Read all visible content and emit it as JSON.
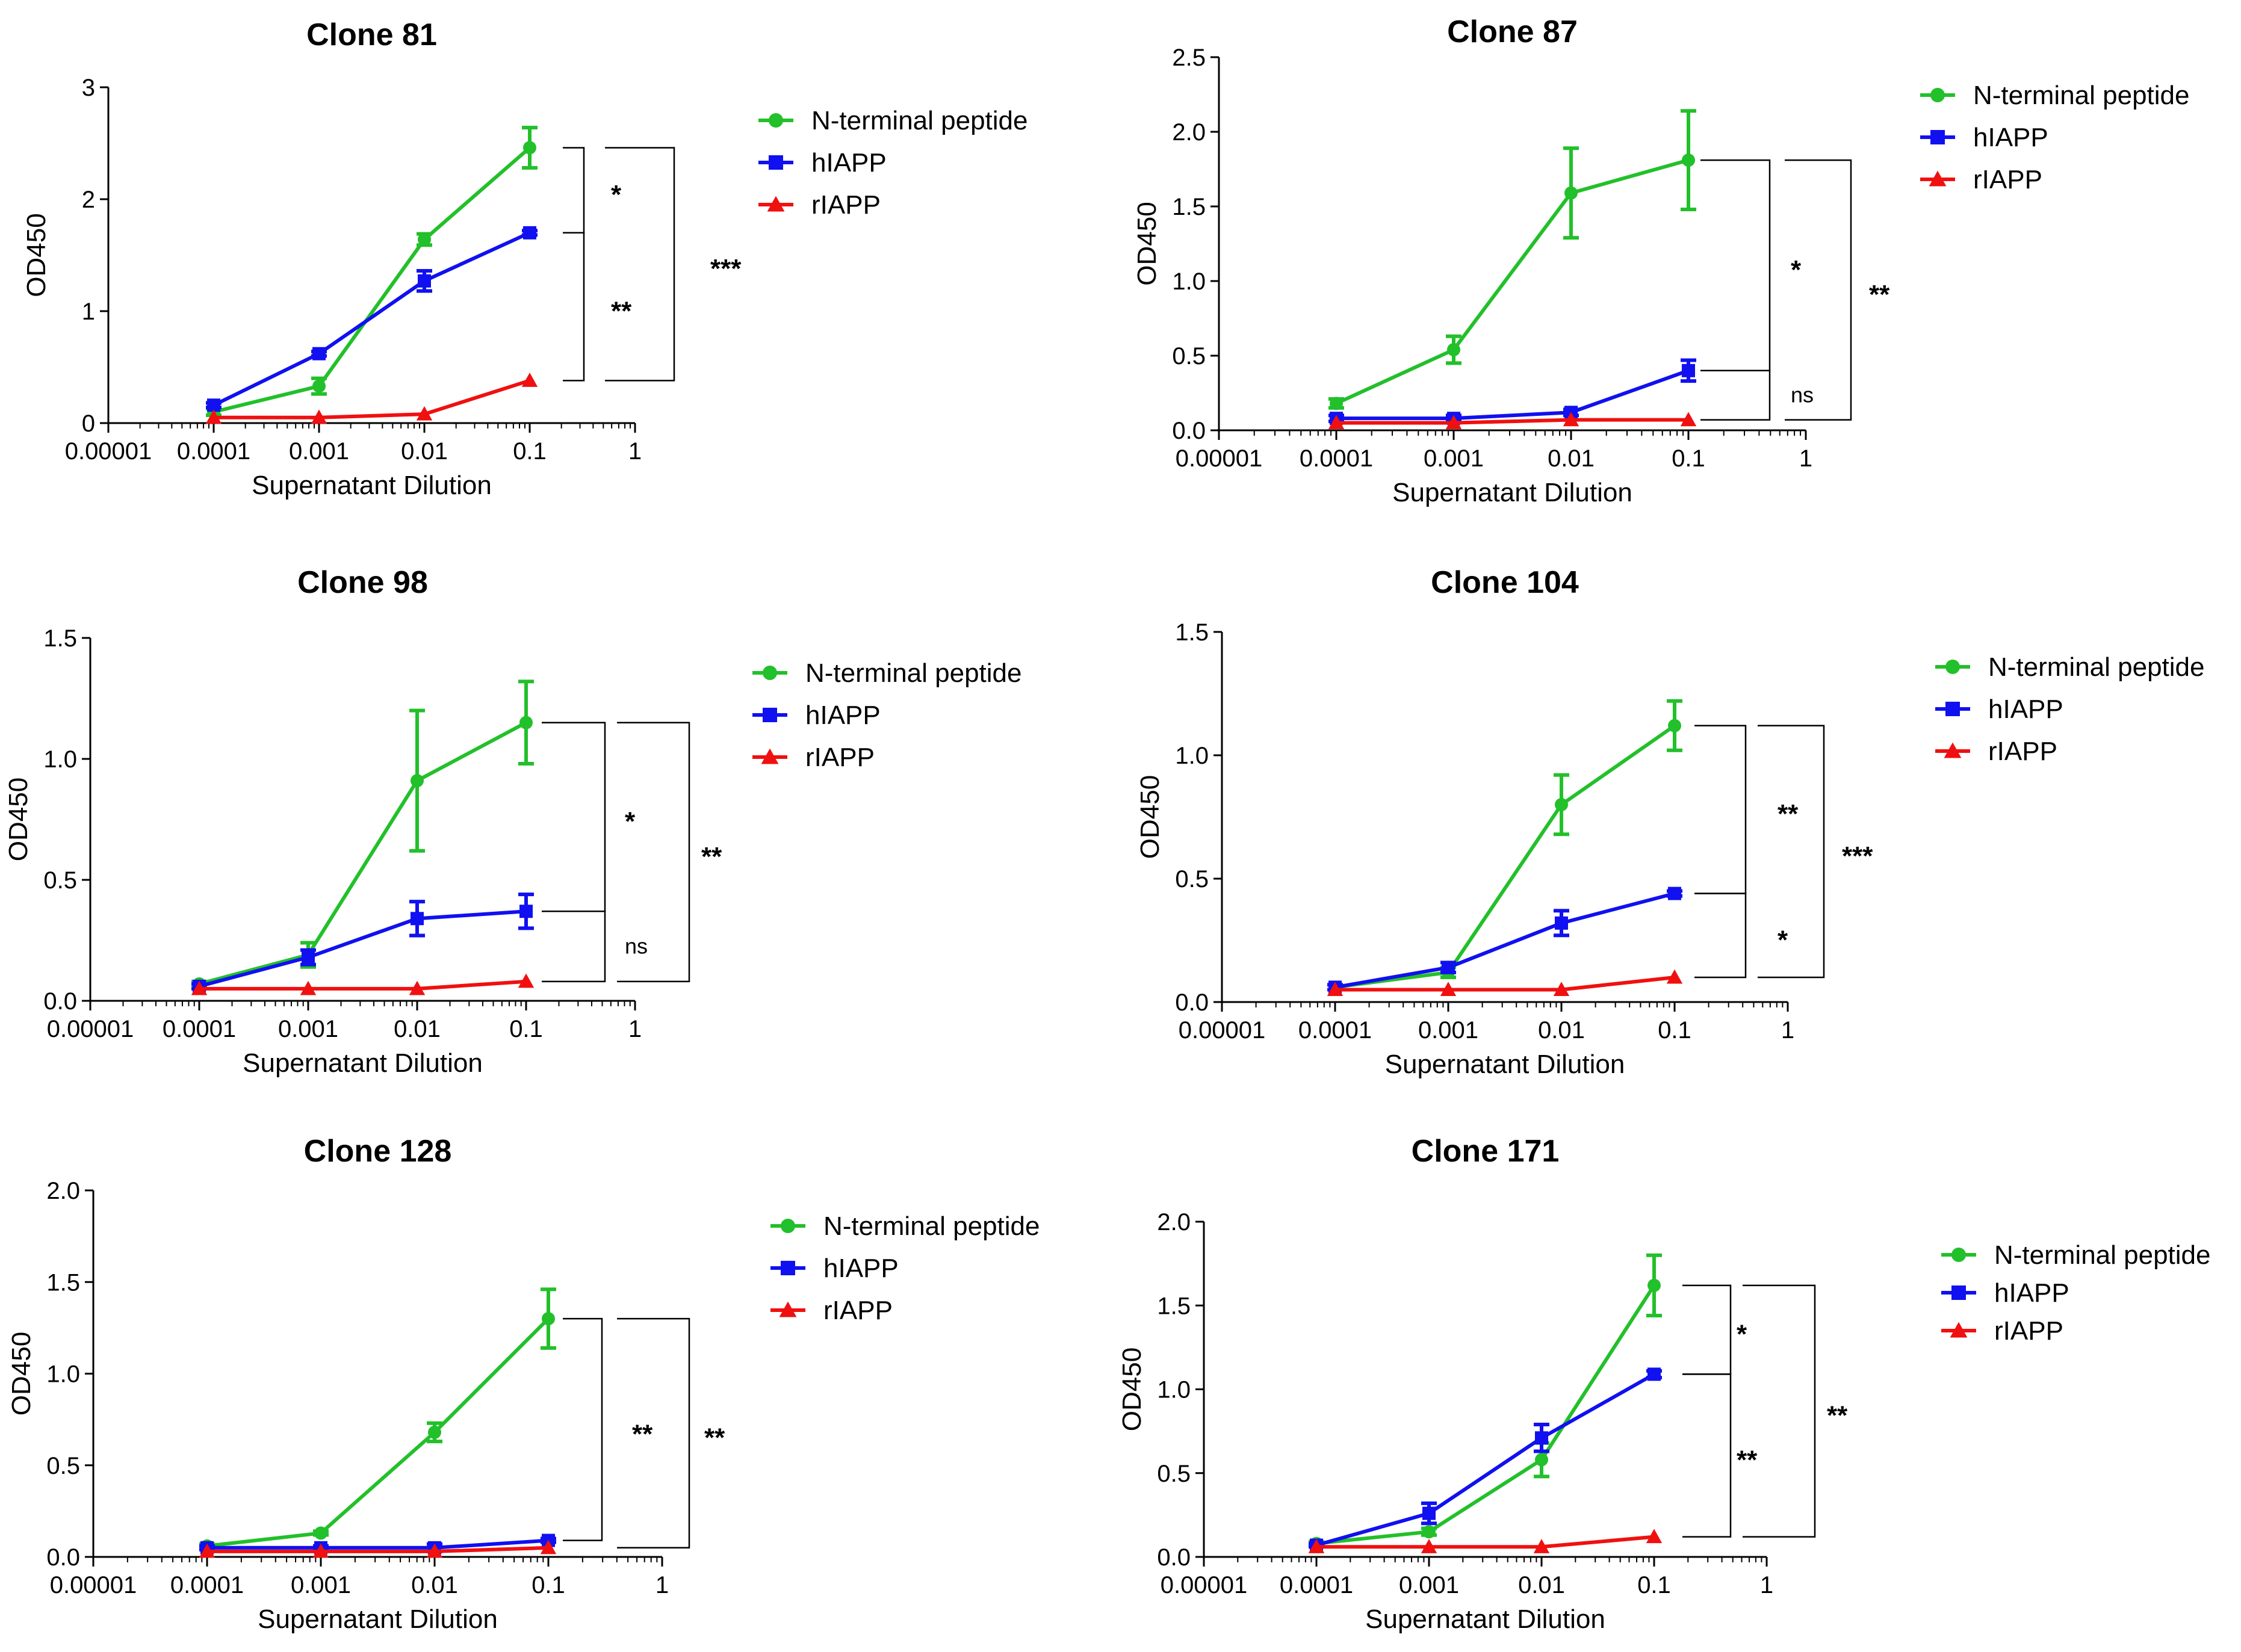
{
  "chart_data": [
    {
      "type": "line",
      "title": "Clone 81",
      "xlabel": "Supernatant Dilution",
      "ylabel": "OD450",
      "xscale": "log",
      "xlim": [
        1e-05,
        1
      ],
      "x_tick_labels": [
        "0.00001",
        "0.0001",
        "0.001",
        "0.01",
        "0.1",
        "1"
      ],
      "ylim": [
        0,
        3
      ],
      "y_tick_labels": [
        "0",
        "1",
        "2",
        "3"
      ],
      "x": [
        0.0001,
        0.001,
        0.01,
        0.1
      ],
      "series": [
        {
          "name": "N-terminal peptide",
          "color": "#22c02a",
          "marker": "circle",
          "values": [
            0.1,
            0.33,
            1.64,
            2.46
          ],
          "errors": [
            0.03,
            0.07,
            0.05,
            0.18
          ]
        },
        {
          "name": "hIAPP",
          "color": "#1010f0",
          "marker": "square",
          "values": [
            0.16,
            0.62,
            1.27,
            1.7
          ],
          "errors": [
            0.02,
            0.02,
            0.09,
            0.02
          ]
        },
        {
          "name": "rIAPP",
          "color": "#f01010",
          "marker": "triangle",
          "values": [
            0.05,
            0.05,
            0.08,
            0.38
          ],
          "errors": [
            0,
            0,
            0,
            0
          ]
        }
      ],
      "legend_position": "right",
      "annotations": [
        {
          "from": "N-terminal peptide",
          "to": "hIAPP",
          "label": "*"
        },
        {
          "from": "hIAPP",
          "to": "rIAPP",
          "label": "**"
        },
        {
          "from": "N-terminal peptide",
          "to": "rIAPP",
          "label": "***"
        }
      ]
    },
    {
      "type": "line",
      "title": "Clone 87",
      "xlabel": "Supernatant Dilution",
      "ylabel": "OD450",
      "xscale": "log",
      "xlim": [
        1e-05,
        1
      ],
      "x_tick_labels": [
        "0.00001",
        "0.0001",
        "0.001",
        "0.01",
        "0.1",
        "1"
      ],
      "ylim": [
        0,
        2.5
      ],
      "y_tick_labels": [
        "0.0",
        "0.5",
        "1.0",
        "1.5",
        "2.0",
        "2.5"
      ],
      "x": [
        0.0001,
        0.001,
        0.01,
        0.1
      ],
      "series": [
        {
          "name": "N-terminal peptide",
          "color": "#22c02a",
          "marker": "circle",
          "values": [
            0.18,
            0.54,
            1.59,
            1.81
          ],
          "errors": [
            0.03,
            0.09,
            0.3,
            0.33
          ]
        },
        {
          "name": "hIAPP",
          "color": "#1010f0",
          "marker": "square",
          "values": [
            0.08,
            0.08,
            0.12,
            0.4
          ],
          "errors": [
            0.02,
            0.02,
            0.02,
            0.07
          ]
        },
        {
          "name": "rIAPP",
          "color": "#f01010",
          "marker": "triangle",
          "values": [
            0.05,
            0.05,
            0.07,
            0.07
          ],
          "errors": [
            0,
            0,
            0,
            0
          ]
        }
      ],
      "legend_position": "right",
      "annotations": [
        {
          "from": "N-terminal peptide",
          "to": "hIAPP",
          "label": "*"
        },
        {
          "from": "hIAPP",
          "to": "rIAPP",
          "label": "ns"
        },
        {
          "from": "N-terminal peptide",
          "to": "rIAPP",
          "label": "**"
        }
      ]
    },
    {
      "type": "line",
      "title": "Clone 98",
      "xlabel": "Supernatant Dilution",
      "ylabel": "OD450",
      "xscale": "log",
      "xlim": [
        1e-05,
        1
      ],
      "x_tick_labels": [
        "0.00001",
        "0.0001",
        "0.001",
        "0.01",
        "0.1",
        "1"
      ],
      "ylim": [
        0,
        1.5
      ],
      "y_tick_labels": [
        "0.0",
        "0.5",
        "1.0",
        "1.5"
      ],
      "x": [
        0.0001,
        0.001,
        0.01,
        0.1
      ],
      "series": [
        {
          "name": "N-terminal peptide",
          "color": "#22c02a",
          "marker": "circle",
          "values": [
            0.07,
            0.19,
            0.91,
            1.15
          ],
          "errors": [
            0.01,
            0.05,
            0.29,
            0.17
          ]
        },
        {
          "name": "hIAPP",
          "color": "#1010f0",
          "marker": "square",
          "values": [
            0.06,
            0.18,
            0.34,
            0.37
          ],
          "errors": [
            0.01,
            0.03,
            0.07,
            0.07
          ]
        },
        {
          "name": "rIAPP",
          "color": "#f01010",
          "marker": "triangle",
          "values": [
            0.05,
            0.05,
            0.05,
            0.08
          ],
          "errors": [
            0,
            0,
            0,
            0
          ]
        }
      ],
      "legend_position": "right",
      "annotations": [
        {
          "from": "N-terminal peptide",
          "to": "hIAPP",
          "label": "*"
        },
        {
          "from": "hIAPP",
          "to": "rIAPP",
          "label": "ns"
        },
        {
          "from": "N-terminal peptide",
          "to": "rIAPP",
          "label": "**"
        }
      ]
    },
    {
      "type": "line",
      "title": "Clone 104",
      "xlabel": "Supernatant Dilution",
      "ylabel": "OD450",
      "xscale": "log",
      "xlim": [
        1e-05,
        1
      ],
      "x_tick_labels": [
        "0.00001",
        "0.0001",
        "0.001",
        "0.01",
        "0.1",
        "1"
      ],
      "ylim": [
        0,
        1.5
      ],
      "y_tick_labels": [
        "0.0",
        "0.5",
        "1.0",
        "1.5"
      ],
      "x": [
        0.0001,
        0.001,
        0.01,
        0.1
      ],
      "series": [
        {
          "name": "N-terminal peptide",
          "color": "#22c02a",
          "marker": "circle",
          "values": [
            0.06,
            0.12,
            0.8,
            1.12
          ],
          "errors": [
            0.01,
            0.02,
            0.12,
            0.1
          ]
        },
        {
          "name": "hIAPP",
          "color": "#1010f0",
          "marker": "square",
          "values": [
            0.06,
            0.14,
            0.32,
            0.44
          ],
          "errors": [
            0.01,
            0.02,
            0.05,
            0.01
          ]
        },
        {
          "name": "rIAPP",
          "color": "#f01010",
          "marker": "triangle",
          "values": [
            0.05,
            0.05,
            0.05,
            0.1
          ],
          "errors": [
            0,
            0,
            0,
            0
          ]
        }
      ],
      "legend_position": "right",
      "annotations": [
        {
          "from": "N-terminal peptide",
          "to": "hIAPP",
          "label": "**"
        },
        {
          "from": "hIAPP",
          "to": "rIAPP",
          "label": "*"
        },
        {
          "from": "N-terminal peptide",
          "to": "rIAPP",
          "label": "***"
        }
      ]
    },
    {
      "type": "line",
      "title": "Clone 128",
      "xlabel": "Supernatant Dilution",
      "ylabel": "OD450",
      "xscale": "log",
      "xlim": [
        1e-05,
        1
      ],
      "x_tick_labels": [
        "0.00001",
        "0.0001",
        "0.001",
        "0.01",
        "0.1",
        "1"
      ],
      "ylim": [
        0,
        2.0
      ],
      "y_tick_labels": [
        "0.0",
        "0.5",
        "1.0",
        "1.5",
        "2.0"
      ],
      "x": [
        0.0001,
        0.001,
        0.01,
        0.1
      ],
      "series": [
        {
          "name": "N-terminal peptide",
          "color": "#22c02a",
          "marker": "circle",
          "values": [
            0.06,
            0.13,
            0.68,
            1.3
          ],
          "errors": [
            0.01,
            0.01,
            0.05,
            0.16
          ]
        },
        {
          "name": "hIAPP",
          "color": "#1010f0",
          "marker": "square",
          "values": [
            0.05,
            0.05,
            0.05,
            0.09
          ],
          "errors": [
            0.01,
            0.01,
            0.02,
            0.01
          ]
        },
        {
          "name": "rIAPP",
          "color": "#f01010",
          "marker": "triangle",
          "values": [
            0.03,
            0.03,
            0.03,
            0.05
          ],
          "errors": [
            0,
            0,
            0,
            0
          ]
        }
      ],
      "legend_position": "right",
      "annotations": [
        {
          "from": "N-terminal peptide",
          "to": "hIAPP",
          "label": "**"
        },
        {
          "from": "N-terminal peptide",
          "to": "rIAPP",
          "label": "**"
        }
      ]
    },
    {
      "type": "line",
      "title": "Clone 171",
      "xlabel": "Supernatant Dilution",
      "ylabel": "OD450",
      "xscale": "log",
      "xlim": [
        1e-05,
        1
      ],
      "x_tick_labels": [
        "0.00001",
        "0.0001",
        "0.001",
        "0.01",
        "0.1",
        "1"
      ],
      "ylim": [
        0,
        2.0
      ],
      "y_tick_labels": [
        "0.0",
        "0.5",
        "1.0",
        "1.5",
        "2.0"
      ],
      "x": [
        0.0001,
        0.001,
        0.01,
        0.1
      ],
      "series": [
        {
          "name": "N-terminal peptide",
          "color": "#22c02a",
          "marker": "circle",
          "values": [
            0.08,
            0.15,
            0.58,
            1.62
          ],
          "errors": [
            0.01,
            0.02,
            0.1,
            0.18
          ]
        },
        {
          "name": "hIAPP",
          "color": "#1010f0",
          "marker": "square",
          "values": [
            0.07,
            0.26,
            0.71,
            1.09
          ],
          "errors": [
            0.01,
            0.06,
            0.08,
            0.02
          ]
        },
        {
          "name": "rIAPP",
          "color": "#f01010",
          "marker": "triangle",
          "values": [
            0.06,
            0.06,
            0.06,
            0.12
          ],
          "errors": [
            0,
            0,
            0,
            0
          ]
        }
      ],
      "legend_position": "right",
      "annotations": [
        {
          "from": "N-terminal peptide",
          "to": "hIAPP",
          "label": "*"
        },
        {
          "from": "hIAPP",
          "to": "rIAPP",
          "label": "**"
        },
        {
          "from": "N-terminal peptide",
          "to": "rIAPP",
          "label": "**"
        }
      ]
    }
  ]
}
